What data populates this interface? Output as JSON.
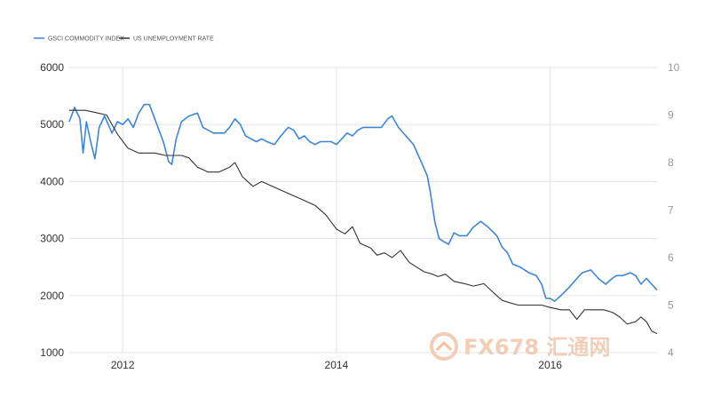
{
  "legend": {
    "gsci_label": "GSCI COMMODITY INDEX",
    "unemployment_label": "US UNEMPLOYMENT RATE"
  },
  "colors": {
    "gsci": "#3d86d6",
    "unemployment": "#333333",
    "grid": "#e3e3e3",
    "watermark": "#f2c9b0"
  },
  "watermark": {
    "text": "FX678 汇通网"
  },
  "chart_data": {
    "type": "line",
    "xlim": [
      2011.5,
      2016.75
    ],
    "x_ticks": [
      2012,
      2014,
      2016
    ],
    "x_tick_labels": [
      "2012",
      "2014",
      "2016"
    ],
    "grid": true,
    "legend_position": "top-left",
    "y_left": {
      "ylim": [
        1000,
        6000
      ],
      "ticks": [
        1000,
        2000,
        3000,
        4000,
        5000,
        6000
      ]
    },
    "y_right": {
      "ylim": [
        4,
        10
      ],
      "ticks": [
        4,
        5,
        6,
        7,
        8,
        9,
        10
      ]
    },
    "series": [
      {
        "name": "GSCI COMMODITY INDEX",
        "axis": "left",
        "points": [
          [
            2011.5,
            5050
          ],
          [
            2011.55,
            5300
          ],
          [
            2011.6,
            5100
          ],
          [
            2011.63,
            4500
          ],
          [
            2011.66,
            5050
          ],
          [
            2011.7,
            4700
          ],
          [
            2011.74,
            4400
          ],
          [
            2011.78,
            4950
          ],
          [
            2011.83,
            5150
          ],
          [
            2011.9,
            4850
          ],
          [
            2011.95,
            5050
          ],
          [
            2012.0,
            5000
          ],
          [
            2012.05,
            5100
          ],
          [
            2012.1,
            4950
          ],
          [
            2012.15,
            5200
          ],
          [
            2012.2,
            5350
          ],
          [
            2012.25,
            5350
          ],
          [
            2012.3,
            5100
          ],
          [
            2012.38,
            4700
          ],
          [
            2012.43,
            4350
          ],
          [
            2012.46,
            4300
          ],
          [
            2012.5,
            4750
          ],
          [
            2012.55,
            5050
          ],
          [
            2012.62,
            5150
          ],
          [
            2012.7,
            5200
          ],
          [
            2012.75,
            4950
          ],
          [
            2012.85,
            4850
          ],
          [
            2012.95,
            4850
          ],
          [
            2013.0,
            4950
          ],
          [
            2013.05,
            5100
          ],
          [
            2013.1,
            5000
          ],
          [
            2013.15,
            4800
          ],
          [
            2013.2,
            4750
          ],
          [
            2013.25,
            4700
          ],
          [
            2013.3,
            4750
          ],
          [
            2013.35,
            4700
          ],
          [
            2013.42,
            4650
          ],
          [
            2013.48,
            4800
          ],
          [
            2013.55,
            4950
          ],
          [
            2013.6,
            4900
          ],
          [
            2013.65,
            4750
          ],
          [
            2013.7,
            4800
          ],
          [
            2013.75,
            4700
          ],
          [
            2013.8,
            4650
          ],
          [
            2013.85,
            4700
          ],
          [
            2013.95,
            4700
          ],
          [
            2014.0,
            4650
          ],
          [
            2014.05,
            4750
          ],
          [
            2014.1,
            4850
          ],
          [
            2014.15,
            4800
          ],
          [
            2014.2,
            4900
          ],
          [
            2014.25,
            4950
          ],
          [
            2014.3,
            4950
          ],
          [
            2014.35,
            4950
          ],
          [
            2014.42,
            4950
          ],
          [
            2014.48,
            5100
          ],
          [
            2014.52,
            5150
          ],
          [
            2014.58,
            4950
          ],
          [
            2014.65,
            4800
          ],
          [
            2014.72,
            4650
          ],
          [
            2014.78,
            4400
          ],
          [
            2014.85,
            4100
          ],
          [
            2014.88,
            3800
          ],
          [
            2014.92,
            3300
          ],
          [
            2014.96,
            3000
          ],
          [
            2015.0,
            2950
          ],
          [
            2015.05,
            2900
          ],
          [
            2015.1,
            3100
          ],
          [
            2015.15,
            3050
          ],
          [
            2015.22,
            3050
          ],
          [
            2015.28,
            3200
          ],
          [
            2015.35,
            3300
          ],
          [
            2015.42,
            3200
          ],
          [
            2015.5,
            3050
          ],
          [
            2015.55,
            2850
          ],
          [
            2015.6,
            2750
          ],
          [
            2015.65,
            2550
          ],
          [
            2015.72,
            2500
          ],
          [
            2015.8,
            2400
          ],
          [
            2015.87,
            2350
          ],
          [
            2015.92,
            2200
          ],
          [
            2015.96,
            1950
          ],
          [
            2016.0,
            1950
          ],
          [
            2016.04,
            1900
          ],
          [
            2016.1,
            2000
          ],
          [
            2016.18,
            2150
          ],
          [
            2016.25,
            2300
          ],
          [
            2016.3,
            2400
          ],
          [
            2016.38,
            2450
          ],
          [
            2016.45,
            2300
          ],
          [
            2016.52,
            2200
          ],
          [
            2016.58,
            2300
          ],
          [
            2016.62,
            2350
          ],
          [
            2016.68,
            2350
          ],
          [
            2016.75,
            2400
          ],
          [
            2016.8,
            2350
          ],
          [
            2016.85,
            2200
          ],
          [
            2016.9,
            2300
          ],
          [
            2016.95,
            2200
          ],
          [
            2017.0,
            2100
          ]
        ]
      },
      {
        "name": "US UNEMPLOYMENT RATE",
        "axis": "right",
        "points": [
          [
            2011.5,
            9.1
          ],
          [
            2011.65,
            9.1
          ],
          [
            2011.75,
            9.05
          ],
          [
            2011.85,
            9.0
          ],
          [
            2011.95,
            8.6
          ],
          [
            2012.05,
            8.3
          ],
          [
            2012.15,
            8.2
          ],
          [
            2012.3,
            8.2
          ],
          [
            2012.4,
            8.15
          ],
          [
            2012.55,
            8.15
          ],
          [
            2012.62,
            8.1
          ],
          [
            2012.7,
            7.9
          ],
          [
            2012.8,
            7.8
          ],
          [
            2012.9,
            7.8
          ],
          [
            2013.0,
            7.9
          ],
          [
            2013.05,
            8.0
          ],
          [
            2013.12,
            7.7
          ],
          [
            2013.22,
            7.5
          ],
          [
            2013.3,
            7.6
          ],
          [
            2013.4,
            7.5
          ],
          [
            2013.5,
            7.4
          ],
          [
            2013.6,
            7.3
          ],
          [
            2013.7,
            7.2
          ],
          [
            2013.8,
            7.1
          ],
          [
            2013.9,
            6.9
          ],
          [
            2014.0,
            6.6
          ],
          [
            2014.08,
            6.5
          ],
          [
            2014.15,
            6.65
          ],
          [
            2014.22,
            6.3
          ],
          [
            2014.32,
            6.2
          ],
          [
            2014.38,
            6.05
          ],
          [
            2014.45,
            6.1
          ],
          [
            2014.52,
            6.0
          ],
          [
            2014.6,
            6.15
          ],
          [
            2014.68,
            5.9
          ],
          [
            2014.75,
            5.8
          ],
          [
            2014.82,
            5.7
          ],
          [
            2014.9,
            5.65
          ],
          [
            2014.95,
            5.6
          ],
          [
            2015.02,
            5.65
          ],
          [
            2015.1,
            5.5
          ],
          [
            2015.2,
            5.45
          ],
          [
            2015.28,
            5.4
          ],
          [
            2015.38,
            5.45
          ],
          [
            2015.45,
            5.3
          ],
          [
            2015.55,
            5.1
          ],
          [
            2015.62,
            5.05
          ],
          [
            2015.7,
            5.0
          ],
          [
            2015.82,
            5.0
          ],
          [
            2015.92,
            5.0
          ],
          [
            2016.0,
            4.95
          ],
          [
            2016.1,
            4.9
          ],
          [
            2016.18,
            4.9
          ],
          [
            2016.25,
            4.7
          ],
          [
            2016.32,
            4.9
          ],
          [
            2016.4,
            4.9
          ],
          [
            2016.5,
            4.9
          ],
          [
            2016.58,
            4.85
          ],
          [
            2016.65,
            4.75
          ],
          [
            2016.72,
            4.6
          ],
          [
            2016.8,
            4.65
          ],
          [
            2016.85,
            4.75
          ],
          [
            2016.9,
            4.65
          ],
          [
            2016.95,
            4.45
          ],
          [
            2017.0,
            4.4
          ]
        ]
      }
    ]
  }
}
